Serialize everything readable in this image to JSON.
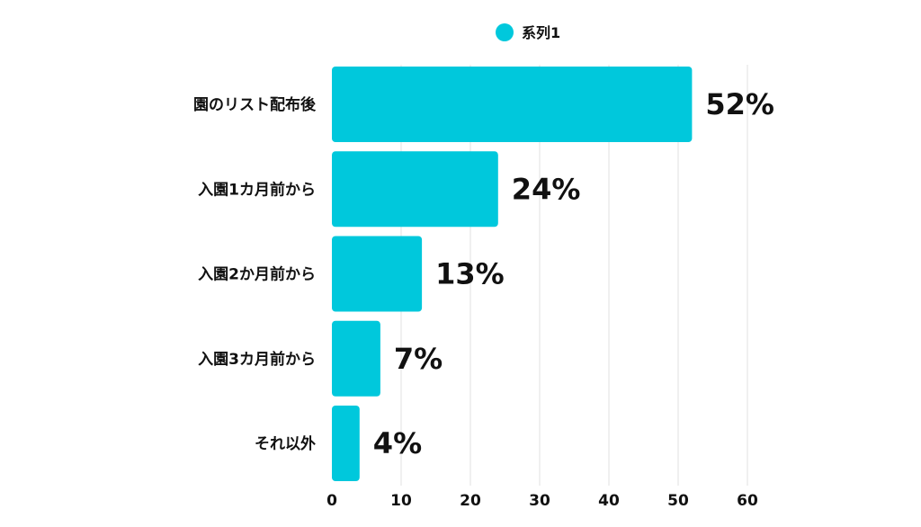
{
  "chart_data": {
    "type": "bar",
    "orientation": "horizontal",
    "categories": [
      "園のリスト配布後",
      "入園1カ月前から",
      "入園2か月前から",
      "入園3カ月前から",
      "それ以外"
    ],
    "series": [
      {
        "name": "系列1",
        "values": [
          52,
          24,
          13,
          7,
          4
        ],
        "data_labels": [
          "52%",
          "24%",
          "13%",
          "7%",
          "4%"
        ],
        "color": "#00c8dc"
      }
    ],
    "xlim": [
      0,
      60
    ],
    "xticks": [
      "0",
      "10",
      "20",
      "30",
      "40",
      "50",
      "60"
    ],
    "grid": true,
    "legend": "top"
  }
}
